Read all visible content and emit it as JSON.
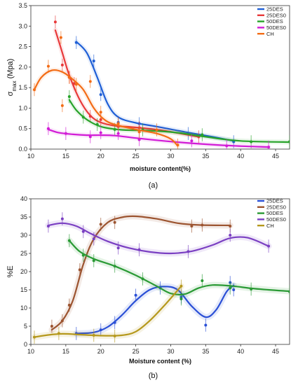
{
  "chart_data": [
    {
      "type": "line",
      "panel_label": "(a)",
      "ylabel_main": "σ",
      "ylabel_sub": "max",
      "ylabel_unit": " (Mpa)",
      "xlabel": "moisture content(%)",
      "xlim": [
        10,
        47
      ],
      "ylim": [
        0,
        3.5
      ],
      "xticks": [
        10,
        15,
        20,
        25,
        30,
        35,
        40,
        45
      ],
      "yticks": [
        0.0,
        0.5,
        1.0,
        1.5,
        2.0,
        2.5,
        3.0,
        3.5
      ],
      "ytick_labels": [
        "0.0",
        "0.5",
        "1.0",
        "1.5",
        "2.0",
        "2.5",
        "3.0",
        "3.5"
      ],
      "grid": false,
      "legend_position": "top-right",
      "series": [
        {
          "name": "25DES",
          "color": "#1f5fd6",
          "points": [
            [
              16.5,
              2.6
            ],
            [
              19,
              2.15
            ],
            [
              20,
              1.33
            ],
            [
              22.5,
              0.65
            ],
            [
              25.5,
              0.62
            ],
            [
              32.5,
              0.38
            ],
            [
              39,
              0.18
            ]
          ],
          "curve": [
            [
              16.5,
              2.62
            ],
            [
              18,
              2.35
            ],
            [
              19.5,
              1.75
            ],
            [
              21,
              1.1
            ],
            [
              22.5,
              0.78
            ],
            [
              25,
              0.64
            ],
            [
              28,
              0.55
            ],
            [
              32,
              0.42
            ],
            [
              36,
              0.3
            ],
            [
              39,
              0.2
            ]
          ]
        },
        {
          "name": "25DES0",
          "color": "#e8393a",
          "points": [
            [
              13.5,
              3.1
            ],
            [
              14.5,
              2.05
            ],
            [
              15.5,
              1.75
            ],
            [
              16.2,
              1.6
            ],
            [
              18.5,
              0.8
            ],
            [
              20,
              0.72
            ],
            [
              22.5,
              0.55
            ],
            [
              25.5,
              0.52
            ],
            [
              34,
              0.3
            ]
          ],
          "curve": [
            [
              13.5,
              2.9
            ],
            [
              14.5,
              2.35
            ],
            [
              15.5,
              1.8
            ],
            [
              17,
              1.2
            ],
            [
              18.5,
              0.82
            ],
            [
              20,
              0.65
            ],
            [
              22,
              0.57
            ],
            [
              25,
              0.53
            ],
            [
              29,
              0.45
            ],
            [
              34,
              0.3
            ]
          ]
        },
        {
          "name": "50DES",
          "color": "#28a32a",
          "points": [
            [
              15.5,
              1.28
            ],
            [
              17.5,
              0.78
            ],
            [
              19.5,
              0.6
            ],
            [
              22,
              0.48
            ],
            [
              26,
              0.47
            ],
            [
              34.5,
              0.35
            ],
            [
              41.5,
              0.18
            ],
            [
              47,
              0.18
            ]
          ],
          "curve": [
            [
              15.5,
              1.2
            ],
            [
              16.5,
              0.95
            ],
            [
              18,
              0.72
            ],
            [
              20,
              0.55
            ],
            [
              23,
              0.47
            ],
            [
              27,
              0.45
            ],
            [
              31,
              0.4
            ],
            [
              35,
              0.3
            ],
            [
              40,
              0.2
            ],
            [
              47,
              0.17
            ]
          ]
        },
        {
          "name": "50DES0",
          "color": "#d21bd6",
          "points": [
            [
              12.5,
              0.5
            ],
            [
              15,
              0.38
            ],
            [
              18.5,
              0.3
            ],
            [
              20,
              0.4
            ],
            [
              22.5,
              0.38
            ],
            [
              25.5,
              0.23
            ],
            [
              33,
              0.2
            ],
            [
              38,
              0.08
            ],
            [
              44,
              0.05
            ]
          ],
          "curve": [
            [
              12.5,
              0.48
            ],
            [
              14,
              0.4
            ],
            [
              16,
              0.36
            ],
            [
              18,
              0.34
            ],
            [
              20,
              0.34
            ],
            [
              22,
              0.33
            ],
            [
              25,
              0.27
            ],
            [
              29,
              0.2
            ],
            [
              34,
              0.13
            ],
            [
              39,
              0.08
            ],
            [
              44,
              0.05
            ]
          ]
        },
        {
          "name": "CH",
          "color": "#f36c16",
          "points": [
            [
              10.5,
              1.45
            ],
            [
              12.5,
              2.02
            ],
            [
              14.5,
              1.06
            ],
            [
              14.3,
              2.72
            ],
            [
              15.5,
              1.75
            ],
            [
              16.5,
              1.58
            ],
            [
              18.5,
              1.65
            ],
            [
              20,
              0.9
            ],
            [
              22.5,
              0.62
            ],
            [
              25.5,
              0.42
            ],
            [
              28,
              0.47
            ],
            [
              31,
              0.1
            ]
          ],
          "curve": [
            [
              10.5,
              1.45
            ],
            [
              11.5,
              1.75
            ],
            [
              13,
              1.92
            ],
            [
              14.5,
              1.88
            ],
            [
              16,
              1.7
            ],
            [
              17.5,
              1.45
            ],
            [
              19,
              1.0
            ],
            [
              20.5,
              0.72
            ],
            [
              22,
              0.6
            ],
            [
              25,
              0.48
            ],
            [
              28,
              0.38
            ],
            [
              30,
              0.25
            ],
            [
              31,
              0.08
            ]
          ]
        }
      ]
    },
    {
      "type": "line",
      "panel_label": "(b)",
      "ylabel": "%E",
      "xlabel": "Moisture content (%)",
      "xlim": [
        10,
        47
      ],
      "ylim": [
        0,
        40
      ],
      "xticks": [
        10,
        15,
        20,
        25,
        30,
        35,
        40,
        45
      ],
      "yticks": [
        0,
        5,
        10,
        15,
        20,
        25,
        30,
        35,
        40
      ],
      "grid": false,
      "legend_position": "top-right",
      "series": [
        {
          "name": "25DES",
          "color": "#2a4fd6",
          "points": [
            [
              16.5,
              3
            ],
            [
              20,
              4
            ],
            [
              22,
              6
            ],
            [
              25,
              13.5
            ],
            [
              28.5,
              15.5
            ],
            [
              31.5,
              13
            ],
            [
              35,
              5.3
            ],
            [
              38.5,
              17
            ],
            [
              39,
              15
            ]
          ],
          "curve": [
            [
              16.5,
              3
            ],
            [
              19,
              3.3
            ],
            [
              21,
              4.8
            ],
            [
              23,
              8
            ],
            [
              25,
              12
            ],
            [
              27,
              15
            ],
            [
              29,
              15.9
            ],
            [
              31,
              15
            ],
            [
              33,
              10.5
            ],
            [
              35,
              7.5
            ],
            [
              36.5,
              9.5
            ],
            [
              38,
              14.5
            ],
            [
              39,
              16.2
            ]
          ]
        },
        {
          "name": "25DES0",
          "color": "#9c5430",
          "points": [
            [
              13,
              5
            ],
            [
              14.5,
              6.5
            ],
            [
              15.5,
              10.8
            ],
            [
              17,
              20.5
            ],
            [
              20,
              33
            ],
            [
              22,
              33.5
            ],
            [
              33,
              32.5
            ],
            [
              34.5,
              32.8
            ],
            [
              38.5,
              32.5
            ]
          ],
          "curve": [
            [
              13,
              4
            ],
            [
              14.5,
              6.5
            ],
            [
              16,
              12
            ],
            [
              17.5,
              22
            ],
            [
              19,
              29
            ],
            [
              21,
              33.5
            ],
            [
              23,
              34.9
            ],
            [
              25,
              35.2
            ],
            [
              28,
              34.5
            ],
            [
              31,
              33.3
            ],
            [
              34,
              32.8
            ],
            [
              38.5,
              32.7
            ]
          ]
        },
        {
          "name": "50DES",
          "color": "#2a9a35",
          "points": [
            [
              15.5,
              28.5
            ],
            [
              17.5,
              24.5
            ],
            [
              19,
              23
            ],
            [
              22,
              21.5
            ],
            [
              26,
              18
            ],
            [
              31.5,
              12.5
            ],
            [
              34.5,
              17.5
            ],
            [
              38.5,
              15.5
            ],
            [
              41.5,
              15.2
            ],
            [
              47,
              14.5
            ]
          ],
          "curve": [
            [
              15.5,
              28.5
            ],
            [
              17,
              25.5
            ],
            [
              19,
              23.5
            ],
            [
              22,
              21.5
            ],
            [
              25,
              19
            ],
            [
              28,
              16
            ],
            [
              30,
              14
            ],
            [
              32,
              13.8
            ],
            [
              34,
              15.5
            ],
            [
              36,
              16.3
            ],
            [
              39,
              16
            ],
            [
              42,
              15.3
            ],
            [
              47,
              14.6
            ]
          ]
        },
        {
          "name": "50DES0",
          "color": "#7a3fc2",
          "points": [
            [
              12.5,
              32.5
            ],
            [
              14.5,
              34.5
            ],
            [
              17.5,
              31
            ],
            [
              19,
              29
            ],
            [
              22.5,
              26.5
            ],
            [
              25.5,
              26
            ],
            [
              32.5,
              25.5
            ],
            [
              38.5,
              30
            ],
            [
              44,
              27
            ]
          ],
          "curve": [
            [
              12.5,
              32.7
            ],
            [
              14.5,
              33.3
            ],
            [
              16.5,
              32.5
            ],
            [
              18.5,
              30.5
            ],
            [
              21,
              28.3
            ],
            [
              24,
              26.5
            ],
            [
              27,
              25.4
            ],
            [
              30,
              25
            ],
            [
              33,
              25.6
            ],
            [
              36,
              27.3
            ],
            [
              38.5,
              29.2
            ],
            [
              41,
              29.3
            ],
            [
              44,
              27
            ]
          ]
        },
        {
          "name": "CH",
          "color": "#b5981c",
          "points": [
            [
              10.5,
              2
            ],
            [
              14,
              3
            ],
            [
              19,
              2.5
            ],
            [
              22,
              2.3
            ],
            [
              31.5,
              16
            ]
          ],
          "curve": [
            [
              10.5,
              2
            ],
            [
              12.5,
              2.6
            ],
            [
              14.5,
              2.9
            ],
            [
              17,
              2.7
            ],
            [
              20,
              2.4
            ],
            [
              23,
              2.5
            ],
            [
              25,
              3.5
            ],
            [
              27,
              6.5
            ],
            [
              29,
              10.5
            ],
            [
              31.5,
              16
            ]
          ]
        }
      ]
    }
  ]
}
